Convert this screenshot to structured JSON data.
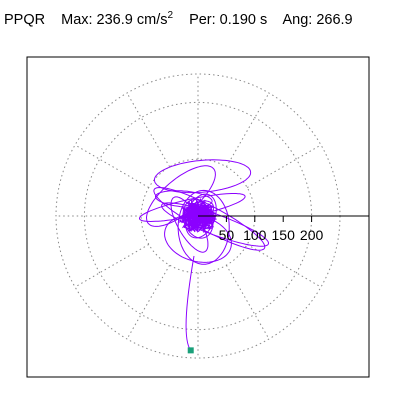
{
  "header": {
    "station": "PPQR",
    "max_label": "Max:",
    "max_value": "236.9 cm/s",
    "max_sup": "2",
    "per_label": "Per:",
    "per_value": "0.190 s",
    "ang_label": "Ang:",
    "ang_value": "266.9"
  },
  "chart_data": {
    "type": "line",
    "subtype": "polar-particle-motion",
    "radial_ticks": [
      50,
      100,
      150,
      200
    ],
    "rmax": 250,
    "grid": "dotted circles and radial spokes every 30 degrees",
    "max_amplitude": 236.9,
    "max_angle_deg": 266.9,
    "colors": {
      "trace": "#8b00ff",
      "grid": "#888888",
      "marker": "#1aa07a",
      "axis": "#000000"
    },
    "loops": [
      {
        "a": 85,
        "b": 28,
        "rot": 5,
        "cx": 8,
        "cy": 70
      },
      {
        "a": 110,
        "b": 22,
        "rot": -28,
        "cx": 20,
        "cy": -5
      },
      {
        "a": 100,
        "b": 18,
        "rot": -20,
        "cx": 30,
        "cy": -15
      },
      {
        "a": 75,
        "b": 30,
        "rot": 40,
        "cx": -30,
        "cy": 35
      },
      {
        "a": 60,
        "b": 40,
        "rot": -15,
        "cx": 0,
        "cy": -40
      },
      {
        "a": 95,
        "b": 15,
        "rot": 12,
        "cx": -10,
        "cy": 15
      },
      {
        "a": 40,
        "b": 25,
        "rot": 70,
        "cx": 5,
        "cy": 0
      },
      {
        "a": 55,
        "b": 20,
        "rot": -60,
        "cx": -15,
        "cy": -15
      },
      {
        "a": 30,
        "b": 18,
        "rot": 30,
        "cx": 0,
        "cy": 5
      },
      {
        "a": 65,
        "b": 45,
        "rot": 90,
        "cx": 10,
        "cy": -20
      },
      {
        "a": 50,
        "b": 14,
        "rot": -5,
        "cx": -25,
        "cy": 30
      },
      {
        "a": 35,
        "b": 25,
        "rot": 110,
        "cx": 0,
        "cy": -5
      }
    ],
    "tail": {
      "r": 236.9,
      "ang": 266.9
    }
  }
}
